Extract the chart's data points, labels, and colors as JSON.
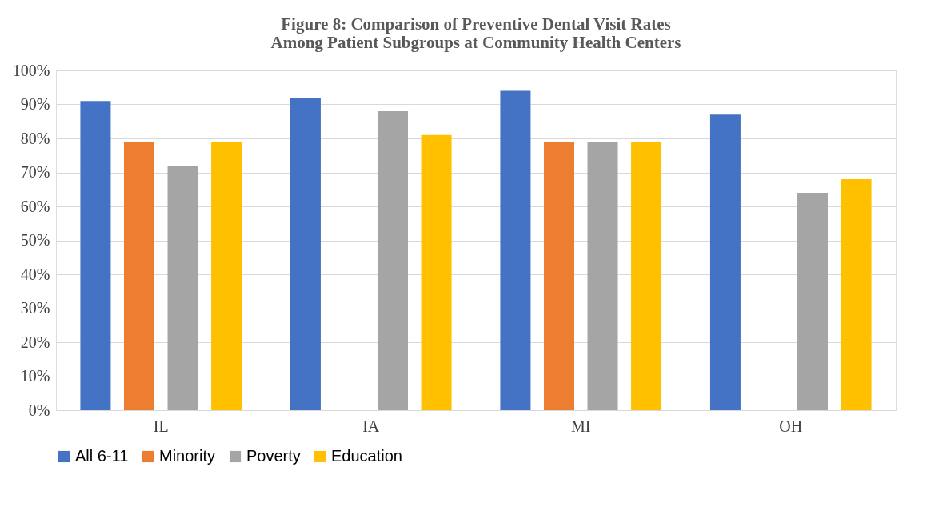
{
  "chart_data": {
    "type": "bar",
    "title": "Figure 8:  Comparison of Preventive Dental Visit Rates Among Patient Subgroups at Community Health Centers",
    "categories": [
      "IL",
      "IA",
      "MI",
      "OH"
    ],
    "series": [
      {
        "name": "All 6-11",
        "color": "#4472c4",
        "values": [
          91,
          92,
          94,
          87
        ]
      },
      {
        "name": "Minority",
        "color": "#ed7d31",
        "values": [
          79,
          null,
          79,
          null
        ]
      },
      {
        "name": "Poverty",
        "color": "#a5a5a5",
        "values": [
          72,
          88,
          79,
          64
        ]
      },
      {
        "name": "Education",
        "color": "#ffc000",
        "values": [
          79,
          81,
          79,
          68
        ]
      }
    ],
    "ylim": [
      0,
      100
    ],
    "yticks": [
      {
        "value": 0,
        "label": "0%"
      },
      {
        "value": 10,
        "label": "10%"
      },
      {
        "value": 20,
        "label": "20%"
      },
      {
        "value": 30,
        "label": "30%"
      },
      {
        "value": 40,
        "label": "40%"
      },
      {
        "value": 50,
        "label": "50%"
      },
      {
        "value": 60,
        "label": "60%"
      },
      {
        "value": 70,
        "label": "70%"
      },
      {
        "value": 80,
        "label": "80%"
      },
      {
        "value": 90,
        "label": "90%"
      },
      {
        "value": 100,
        "label": "100%"
      }
    ],
    "grid": "y",
    "legend": "bottom"
  }
}
